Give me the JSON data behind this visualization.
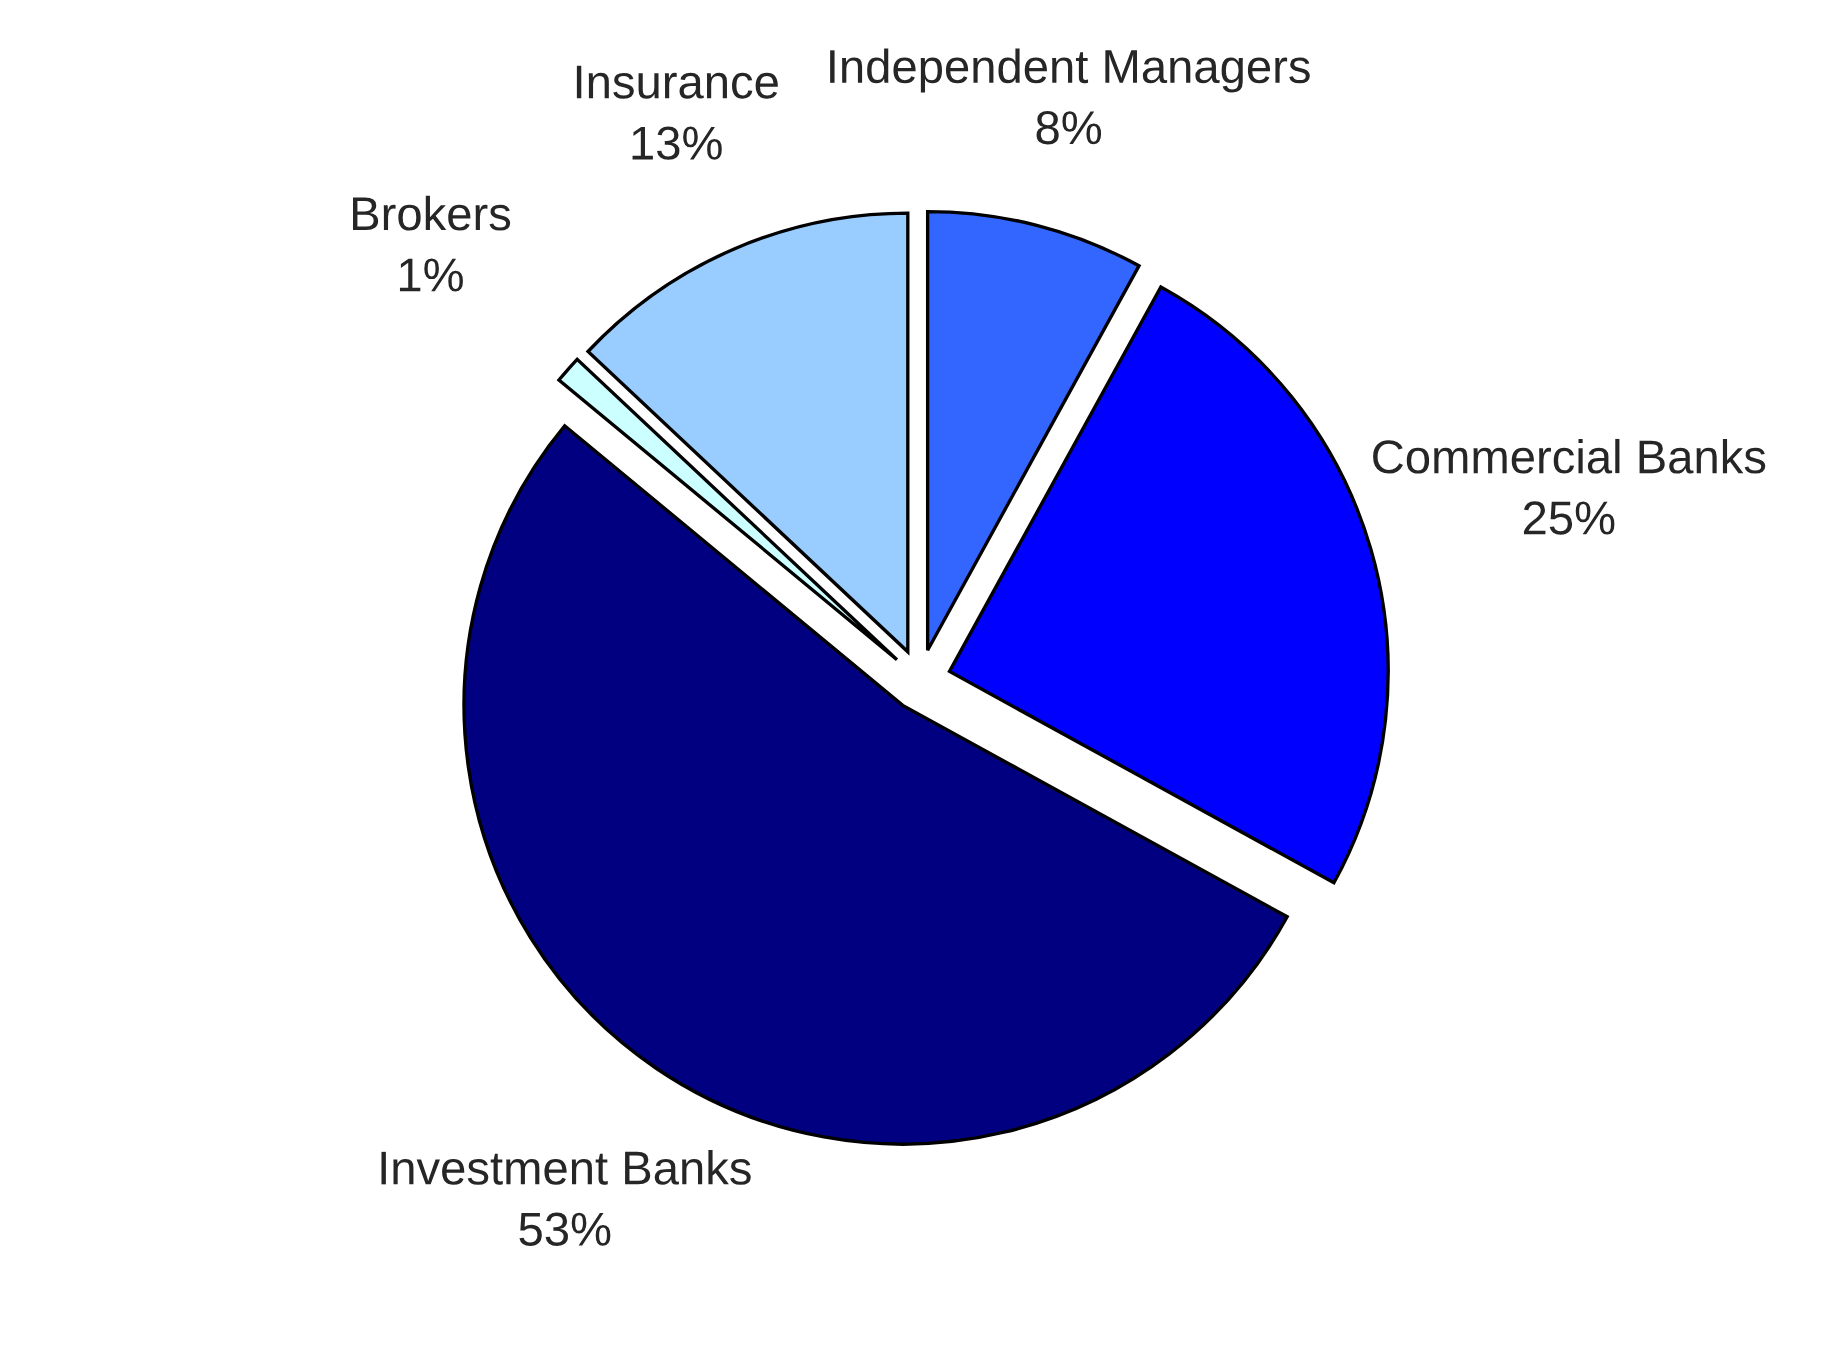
{
  "chart_data": {
    "type": "pie",
    "categories": [
      "Independent Managers",
      "Commercial Banks",
      "Investment Banks",
      "Brokers",
      "Insurance"
    ],
    "values": [
      8,
      25,
      53,
      1,
      13
    ],
    "colors": [
      "#3366ff",
      "#0000ff",
      "#000080",
      "#ccffff",
      "#99ccff"
    ],
    "value_labels": [
      "8%",
      "25%",
      "53%",
      "1%",
      "13%"
    ]
  }
}
